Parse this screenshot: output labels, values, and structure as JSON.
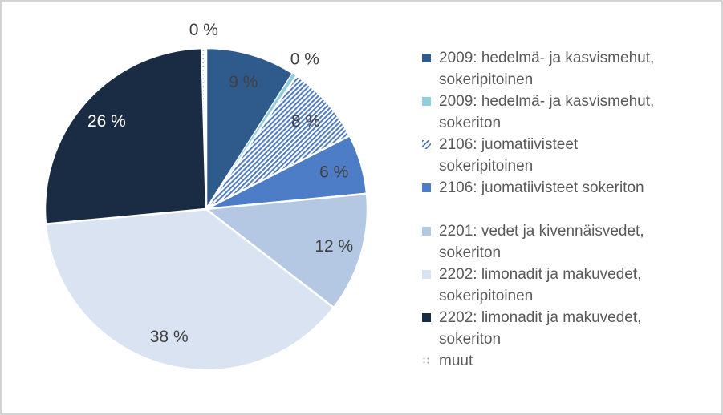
{
  "chart_data": {
    "type": "pie",
    "title": "",
    "legend_position": "right",
    "grid": false,
    "value_suffix": " %",
    "label_color": "#404040",
    "slices": [
      {
        "name": "2009: hedelmä- ja kasvismehut, sokeripitoinen",
        "legend_lines": [
          "2009: hedelmä- ja kasvismehut,",
          "sokeripitoinen"
        ],
        "value": 9,
        "display": "9 %",
        "color": "#2E5A8C",
        "pattern": "solid",
        "label_placement": "inside"
      },
      {
        "name": "2009: hedelmä- ja kasvismehut, sokeriton",
        "legend_lines": [
          "2009: hedelmä- ja kasvismehut,",
          "sokeriton"
        ],
        "value": 0,
        "display": "0 %",
        "color": "#92CDDC",
        "pattern": "solid",
        "label_placement": "outside"
      },
      {
        "name": "2106: juomatiivisteet sokeripitoinen",
        "legend_lines": [
          "2106: juomatiivisteet",
          "sokeripitoinen"
        ],
        "value": 8,
        "display": "8 %",
        "color": "#4E7BBE",
        "pattern": "hatch-diagonal",
        "label_placement": "inside"
      },
      {
        "name": "2106: juomatiivisteet sokeriton",
        "legend_lines": [
          "2106: juomatiivisteet sokeriton"
        ],
        "value": 6,
        "display": "6 %",
        "color": "#4C7DC6",
        "pattern": "solid",
        "label_placement": "inside"
      },
      {
        "name": "2201: vedet ja kivennäisvedet, sokeriton",
        "legend_lines": [
          "2201: vedet ja kivennäisvedet,",
          "sokeriton"
        ],
        "value": 12,
        "display": "12 %",
        "color": "#B5C8E3",
        "pattern": "solid",
        "label_placement": "inside"
      },
      {
        "name": "2202: limonadit ja makuvedet, sokeripitoinen",
        "legend_lines": [
          "2202: limonadit ja makuvedet,",
          "sokeripitoinen"
        ],
        "value": 38,
        "display": "38 %",
        "color": "#DAE3F1",
        "pattern": "solid",
        "label_placement": "inside"
      },
      {
        "name": "2202: limonadit ja makuvedet, sokeriton",
        "legend_lines": [
          "2202: limonadit ja makuvedet,",
          "sokeriton"
        ],
        "value": 26,
        "display": "26 %",
        "color": "#1A2C44",
        "pattern": "solid",
        "label_placement": "inside",
        "label_color": "#FFFFFF"
      },
      {
        "name": "muut",
        "legend_lines": [
          "muut"
        ],
        "value": 0,
        "display": "0 %",
        "color": "#93A2B4",
        "pattern": "dots",
        "label_placement": "outside"
      }
    ]
  },
  "frame": {
    "background": "#FFFFFF",
    "border_color": "#D4D4D4"
  }
}
